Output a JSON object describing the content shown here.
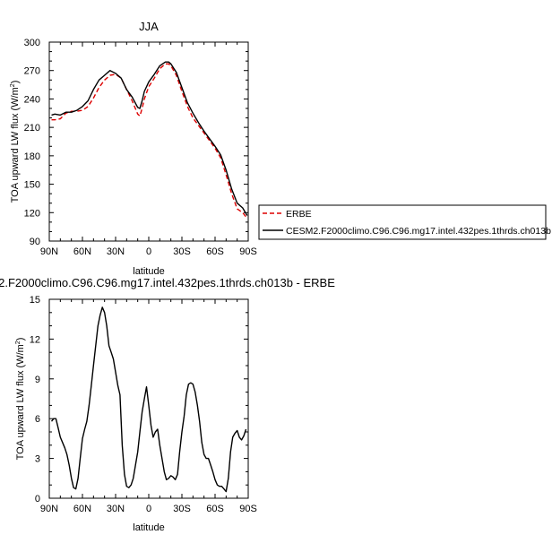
{
  "chart_data": [
    {
      "type": "line",
      "title": "JJA",
      "xlabel": "latitude",
      "ylabel": "TOA upward LW flux (W/m",
      "ylabel_sup": "2",
      "ylabel_close": ")",
      "xlim": [
        90,
        -90
      ],
      "ylim": [
        90,
        300
      ],
      "xticks": [
        90,
        60,
        30,
        0,
        -30,
        -60,
        -90
      ],
      "xtick_labels": [
        "90N",
        "60N",
        "30N",
        "0",
        "30S",
        "60S",
        "90S"
      ],
      "yticks": [
        90,
        120,
        150,
        180,
        210,
        240,
        270,
        300
      ],
      "ytick_labels": [
        "90",
        "120",
        "150",
        "180",
        "210",
        "240",
        "270",
        "300"
      ],
      "legend": "outside-right",
      "series": [
        {
          "name": "ERBE",
          "color": "#dd0000",
          "dash": "dashed",
          "x": [
            88,
            85,
            80,
            75,
            70,
            65,
            60,
            55,
            50,
            45,
            40,
            35,
            30,
            25,
            20,
            15,
            10,
            8,
            6,
            4,
            0,
            -5,
            -10,
            -15,
            -18,
            -20,
            -25,
            -30,
            -35,
            -40,
            -45,
            -50,
            -55,
            -60,
            -65,
            -70,
            -75,
            -80,
            -85,
            -89
          ],
          "y": [
            218,
            218,
            219,
            225,
            227,
            227,
            228,
            232,
            241,
            252,
            260,
            265,
            266,
            262,
            250,
            238,
            224,
            222,
            230,
            240,
            253,
            262,
            272,
            277,
            277,
            275,
            265,
            248,
            232,
            220,
            212,
            204,
            196,
            188,
            178,
            160,
            140,
            124,
            120,
            114
          ]
        },
        {
          "name": "CESM2.F2000climo.C96.C96.mg17.intel.432pes.1thrds.ch013b",
          "color": "#000000",
          "dash": "solid",
          "x": [
            88,
            85,
            80,
            75,
            70,
            65,
            60,
            55,
            50,
            45,
            40,
            35,
            30,
            25,
            20,
            15,
            10,
            8,
            6,
            4,
            0,
            -5,
            -10,
            -15,
            -18,
            -20,
            -25,
            -30,
            -35,
            -40,
            -45,
            -50,
            -55,
            -60,
            -65,
            -70,
            -75,
            -80,
            -85,
            -89
          ],
          "y": [
            223,
            224,
            223,
            226,
            226,
            228,
            232,
            238,
            250,
            260,
            265,
            270,
            267,
            262,
            250,
            242,
            231,
            230,
            238,
            248,
            258,
            266,
            275,
            279,
            279,
            277,
            268,
            252,
            236,
            225,
            215,
            206,
            198,
            190,
            181,
            165,
            145,
            130,
            125,
            117
          ]
        }
      ]
    },
    {
      "type": "line",
      "title": "2.F2000climo.C96.C96.mg17.intel.432pes.1thrds.ch013b - ERBE",
      "xlabel": "latitude",
      "ylabel": "TOA upward LW flux (W/m",
      "ylabel_sup": "2",
      "ylabel_close": ")",
      "xlim": [
        90,
        -90
      ],
      "ylim": [
        0,
        15
      ],
      "xticks": [
        90,
        60,
        30,
        0,
        -30,
        -60,
        -90
      ],
      "xtick_labels": [
        "90N",
        "60N",
        "30N",
        "0",
        "30S",
        "60S",
        "90S"
      ],
      "yticks": [
        0,
        3,
        6,
        9,
        12,
        15
      ],
      "ytick_labels": [
        "0",
        "3",
        "6",
        "9",
        "12",
        "15"
      ],
      "series": [
        {
          "color": "#000000",
          "x": [
            88,
            86,
            84,
            82,
            80,
            78,
            76,
            74,
            72,
            70,
            68,
            66,
            64,
            62,
            60,
            58,
            56,
            54,
            52,
            50,
            48,
            46,
            44,
            42,
            40,
            38,
            36,
            34,
            32,
            30,
            28,
            26,
            24,
            22,
            20,
            18,
            16,
            14,
            12,
            10,
            8,
            6,
            4,
            2,
            0,
            -2,
            -4,
            -6,
            -8,
            -10,
            -12,
            -14,
            -16,
            -18,
            -20,
            -22,
            -24,
            -26,
            -28,
            -30,
            -32,
            -34,
            -36,
            -38,
            -40,
            -42,
            -44,
            -46,
            -48,
            -50,
            -52,
            -54,
            -56,
            -58,
            -60,
            -62,
            -64,
            -66,
            -68,
            -70,
            -72,
            -74,
            -76,
            -78,
            -80,
            -82,
            -84,
            -86,
            -88
          ],
          "y": [
            5.8,
            6.0,
            6.0,
            5.3,
            4.6,
            4.2,
            3.8,
            3.3,
            2.5,
            1.5,
            0.8,
            0.7,
            1.5,
            3.0,
            4.5,
            5.2,
            5.8,
            7.0,
            8.5,
            10.0,
            11.5,
            13.0,
            13.8,
            14.4,
            14.0,
            13.0,
            11.5,
            11.0,
            10.5,
            9.5,
            8.5,
            7.8,
            4.0,
            1.8,
            0.9,
            0.8,
            1.0,
            1.5,
            2.5,
            3.5,
            5.0,
            6.5,
            7.5,
            8.4,
            7.0,
            5.5,
            4.6,
            5.0,
            5.2,
            4.0,
            3.0,
            2.0,
            1.4,
            1.5,
            1.7,
            1.6,
            1.4,
            1.8,
            3.5,
            5.0,
            6.2,
            7.8,
            8.6,
            8.7,
            8.6,
            8.0,
            7.0,
            5.8,
            4.2,
            3.3,
            3.0,
            3.0,
            2.5,
            2.0,
            1.4,
            1.0,
            0.9,
            0.9,
            0.7,
            0.5,
            1.5,
            3.5,
            4.6,
            4.9,
            5.1,
            4.6,
            4.4,
            4.7,
            5.2
          ]
        }
      ]
    }
  ]
}
